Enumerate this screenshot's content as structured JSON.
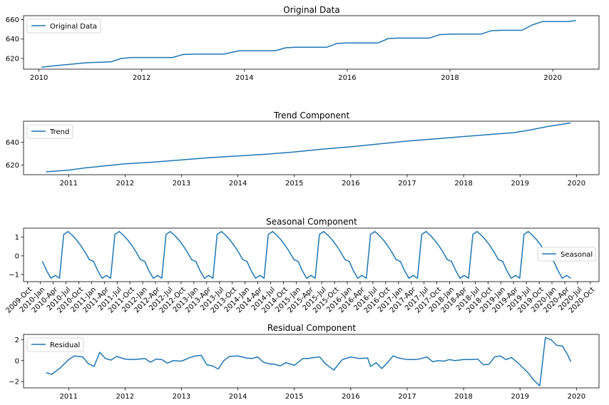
{
  "chart_data": [
    {
      "type": "line",
      "title": "Original Data",
      "legend": "Original Data",
      "legend_loc": "upper-left",
      "x_scale": "year",
      "xlim": [
        2009.7,
        2020.9
      ],
      "ylim": [
        609,
        664
      ],
      "xticks": [
        2010,
        2012,
        2014,
        2016,
        2018,
        2020
      ],
      "xtick_labels": [
        "2010",
        "2012",
        "2014",
        "2016",
        "2018",
        "2020"
      ],
      "yticks": [
        620,
        640,
        660
      ],
      "ytick_labels": [
        "620",
        "640",
        "660"
      ],
      "series": [
        {
          "x": [
            2010.05,
            2010.3,
            2010.6,
            2010.9,
            2011.1,
            2011.4,
            2011.6,
            2011.8,
            2012.0,
            2012.3,
            2012.6,
            2012.8,
            2013.0,
            2013.3,
            2013.6,
            2013.9,
            2014.0,
            2014.3,
            2014.6,
            2014.8,
            2015.0,
            2015.3,
            2015.6,
            2015.8,
            2016.0,
            2016.3,
            2016.6,
            2016.8,
            2017.0,
            2017.3,
            2017.6,
            2017.8,
            2018.0,
            2018.3,
            2018.6,
            2018.8,
            2019.0,
            2019.3,
            2019.4,
            2019.6,
            2019.8,
            2020.0,
            2020.3,
            2020.45
          ],
          "y": [
            611,
            612.5,
            614,
            615.5,
            616,
            616.5,
            620,
            621,
            621,
            621,
            621,
            624,
            624.5,
            624.5,
            624.5,
            628,
            628,
            628,
            628,
            631,
            631.5,
            631.5,
            631.5,
            635.5,
            636,
            636,
            636,
            640.5,
            641,
            641,
            641,
            644.5,
            645,
            645,
            645,
            648.5,
            649,
            649,
            649,
            654.5,
            658,
            658,
            658,
            659
          ]
        }
      ]
    },
    {
      "type": "line",
      "title": "Trend Component",
      "legend": "Trend",
      "legend_loc": "upper-left",
      "x_scale": "year",
      "xlim": [
        2010.2,
        2020.4
      ],
      "ylim": [
        611.5,
        658.5
      ],
      "xticks": [
        2011,
        2012,
        2013,
        2014,
        2015,
        2016,
        2017,
        2018,
        2019,
        2020
      ],
      "xtick_labels": [
        "2011",
        "2012",
        "2013",
        "2014",
        "2015",
        "2016",
        "2017",
        "2018",
        "2019",
        "2020"
      ],
      "yticks": [
        620,
        640
      ],
      "ytick_labels": [
        "620",
        "640"
      ],
      "series": [
        {
          "x": [
            2010.6,
            2011.0,
            2011.3,
            2011.6,
            2012.0,
            2012.5,
            2013.0,
            2013.5,
            2014.0,
            2014.5,
            2015.0,
            2015.5,
            2016.0,
            2016.5,
            2017.0,
            2017.5,
            2018.0,
            2018.5,
            2018.9,
            2019.2,
            2019.5,
            2019.9
          ],
          "y": [
            614,
            615.5,
            617.5,
            619,
            621,
            622.5,
            624.5,
            626.5,
            628,
            629.5,
            631.5,
            634,
            636,
            638.5,
            641,
            643,
            645,
            647,
            648.5,
            651,
            654,
            657
          ]
        }
      ]
    },
    {
      "type": "line",
      "title": "Seasonal Component",
      "legend": "Seasonal",
      "legend_loc": "center-right",
      "x_scale": "year",
      "xlim": [
        2009.67,
        2020.92
      ],
      "ylim": [
        -1.38,
        1.48
      ],
      "xticks_label_rotation": 45,
      "xtick_labels": [
        "2009-Oct",
        "2010-Jan",
        "2010-Apr",
        "2010-Jul",
        "2010-Oct",
        "2011-Jan",
        "2011-Apr",
        "2011-Jul",
        "2011-Oct",
        "2012-Jan",
        "2012-Apr",
        "2012-Jul",
        "2012-Oct",
        "2013-Jan",
        "2013-Apr",
        "2013-Jul",
        "2013-Oct",
        "2014-Jan",
        "2014-Apr",
        "2014-Jul",
        "2014-Oct",
        "2015-Jan",
        "2015-Apr",
        "2015-Jul",
        "2015-Oct",
        "2016-Jan",
        "2016-Apr",
        "2016-Jul",
        "2016-Oct",
        "2017-Jan",
        "2017-Apr",
        "2017-Jul",
        "2017-Oct",
        "2018-Jan",
        "2018-Apr",
        "2018-Jul",
        "2018-Oct",
        "2019-Jan",
        "2019-Apr",
        "2019-Jul",
        "2019-Oct",
        "2020-Jan",
        "2020-Apr",
        "2020-Jul",
        "2020-Oct"
      ],
      "yticks": [
        -1,
        0,
        1
      ],
      "ytick_labels": [
        "−1",
        "0",
        "1"
      ],
      "seasonal_cycle": [
        -0.3,
        -0.8,
        -1.2,
        -1.05,
        -1.2,
        1.15,
        1.3,
        1.1,
        0.85,
        0.55,
        0.2,
        -0.2,
        -0.7,
        -1.2,
        -1.05,
        -1.2,
        1.15,
        1.3
      ],
      "series": [
        {
          "x_start": 2010.04,
          "x_step": 0.0833,
          "pattern": [
            -0.3,
            -0.8,
            -1.2,
            -1.05,
            -1.2,
            1.15,
            1.3,
            1.1,
            0.85,
            0.55,
            0.2,
            -0.2
          ],
          "pattern_offset_values": [
            -0.3,
            -0.8,
            -1.2,
            -1.05,
            -1.2
          ],
          "x_end": 2020.42
        }
      ]
    },
    {
      "type": "line",
      "title": "Residual Component",
      "legend": "Residual",
      "legend_loc": "upper-left",
      "x_scale": "year",
      "xlim": [
        2010.2,
        2020.4
      ],
      "ylim": [
        -2.6,
        2.5
      ],
      "xticks": [
        2011,
        2012,
        2013,
        2014,
        2015,
        2016,
        2017,
        2018,
        2019,
        2020
      ],
      "xtick_labels": [
        "2011",
        "2012",
        "2013",
        "2014",
        "2015",
        "2016",
        "2017",
        "2018",
        "2019",
        "2020"
      ],
      "yticks": [
        -2,
        0,
        2
      ],
      "ytick_labels": [
        "−2",
        "0",
        "2"
      ],
      "series": [
        {
          "x": [
            2010.6,
            2010.7,
            2010.85,
            2011.0,
            2011.1,
            2011.25,
            2011.35,
            2011.45,
            2011.55,
            2011.65,
            2011.75,
            2011.85,
            2012.0,
            2012.15,
            2012.25,
            2012.35,
            2012.45,
            2012.55,
            2012.65,
            2012.75,
            2012.85,
            2013.0,
            2013.15,
            2013.25,
            2013.35,
            2013.45,
            2013.55,
            2013.65,
            2013.75,
            2013.85,
            2014.0,
            2014.15,
            2014.25,
            2014.35,
            2014.45,
            2014.55,
            2014.65,
            2014.75,
            2014.85,
            2015.0,
            2015.15,
            2015.25,
            2015.35,
            2015.45,
            2015.55,
            2015.7,
            2015.85,
            2016.0,
            2016.15,
            2016.3,
            2016.35,
            2016.45,
            2016.55,
            2016.65,
            2016.75,
            2016.85,
            2017.0,
            2017.15,
            2017.25,
            2017.35,
            2017.45,
            2017.55,
            2017.65,
            2017.75,
            2017.85,
            2018.0,
            2018.15,
            2018.25,
            2018.35,
            2018.45,
            2018.55,
            2018.65,
            2018.75,
            2018.85,
            2019.0,
            2019.15,
            2019.25,
            2019.35,
            2019.45,
            2019.55,
            2019.65,
            2019.75,
            2019.85,
            2019.9
          ],
          "y": [
            -1.15,
            -1.3,
            -0.7,
            0.1,
            0.45,
            0.35,
            -0.3,
            -0.55,
            0.8,
            0.2,
            0.05,
            0.4,
            0.15,
            0.1,
            0.15,
            0.2,
            -0.15,
            0.15,
            0.1,
            -0.25,
            0.0,
            -0.05,
            0.3,
            0.45,
            0.5,
            -0.4,
            -0.5,
            -0.8,
            0.0,
            0.4,
            0.45,
            0.25,
            0.2,
            0.35,
            -0.15,
            -0.3,
            -0.35,
            -0.5,
            -0.2,
            -0.45,
            0.2,
            0.2,
            0.3,
            0.35,
            -0.3,
            -0.9,
            0.1,
            0.35,
            0.2,
            0.25,
            -0.55,
            -0.2,
            -0.75,
            -0.2,
            0.45,
            0.25,
            0.1,
            0.1,
            0.2,
            0.35,
            -0.1,
            0.0,
            -0.05,
            0.1,
            0.0,
            0.1,
            0.1,
            0.15,
            -0.4,
            -0.35,
            0.35,
            0.45,
            0.1,
            0.3,
            -0.4,
            -1.2,
            -1.9,
            -2.4,
            2.2,
            2.0,
            1.45,
            1.4,
            0.5,
            -0.1
          ]
        }
      ]
    }
  ]
}
